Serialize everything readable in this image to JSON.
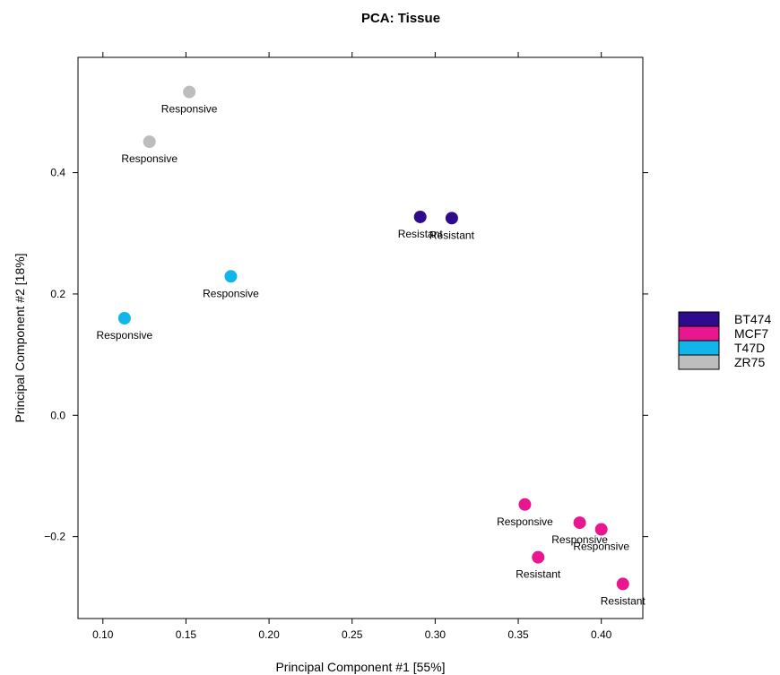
{
  "chart_data": {
    "type": "scatter",
    "title": "PCA: Tissue",
    "xlabel": "Principal Component #1 [55%]",
    "ylabel": "Principal Component #2 [18%]",
    "xlim": [
      0.085,
      0.425
    ],
    "ylim": [
      -0.335,
      0.59
    ],
    "xticks": [
      0.1,
      0.15,
      0.2,
      0.25,
      0.3,
      0.35,
      0.4
    ],
    "xtick_labels": [
      "0.10",
      "0.15",
      "0.20",
      "0.25",
      "0.30",
      "0.35",
      "0.40"
    ],
    "yticks": [
      -0.2,
      0.0,
      0.2,
      0.4
    ],
    "ytick_labels": [
      "−0.2",
      "0.0",
      "0.2",
      "0.4"
    ],
    "grid": false,
    "legend_position": "right",
    "series": [
      {
        "name": "BT474",
        "color": "#2e0a8c",
        "points": [
          {
            "x": 0.291,
            "y": 0.327,
            "label": "Resistant"
          },
          {
            "x": 0.31,
            "y": 0.325,
            "label": "Resistant"
          }
        ]
      },
      {
        "name": "MCF7",
        "color": "#e8178f",
        "points": [
          {
            "x": 0.354,
            "y": -0.147,
            "label": "Responsive"
          },
          {
            "x": 0.387,
            "y": -0.177,
            "label": "Responsive"
          },
          {
            "x": 0.4,
            "y": -0.188,
            "label": "Responsive"
          },
          {
            "x": 0.362,
            "y": -0.234,
            "label": "Resistant"
          },
          {
            "x": 0.413,
            "y": -0.278,
            "label": "Resistant"
          }
        ]
      },
      {
        "name": "T47D",
        "color": "#12b5ea",
        "points": [
          {
            "x": 0.177,
            "y": 0.229,
            "label": "Responsive"
          },
          {
            "x": 0.113,
            "y": 0.16,
            "label": "Responsive"
          }
        ]
      },
      {
        "name": "ZR75",
        "color": "#bdbdbd",
        "points": [
          {
            "x": 0.152,
            "y": 0.533,
            "label": "Responsive"
          },
          {
            "x": 0.128,
            "y": 0.451,
            "label": "Responsive"
          }
        ]
      }
    ]
  }
}
